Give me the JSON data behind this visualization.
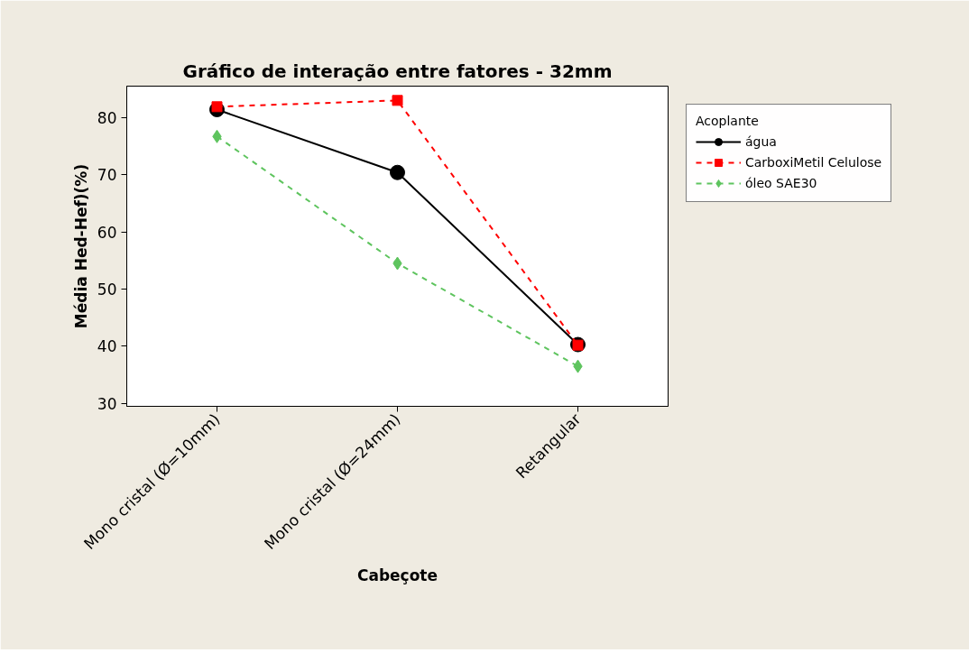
{
  "chart_data": {
    "type": "line",
    "title": "Gráfico de interação entre fatores - 32mm",
    "xlabel": "Cabeçote",
    "ylabel": "Média Hed-Hef)(%)",
    "legend_title": "Acoplante",
    "categories": [
      "Mono cristal (Ø=10mm)",
      "Mono cristal (Ø=24mm)",
      "Retangular"
    ],
    "series": [
      {
        "name": "água",
        "color": "#000000",
        "values": [
          81.4,
          70.4,
          40.3
        ],
        "marker": "circle",
        "line_style": "solid"
      },
      {
        "name": "CarboxiMetil Celulose",
        "color": "#ff0000",
        "values": [
          81.9,
          83.0,
          40.2
        ],
        "marker": "square",
        "line_style": "dashed"
      },
      {
        "name": "óleo SAE30",
        "color": "#5ec45e",
        "values": [
          76.7,
          54.5,
          36.5
        ],
        "marker": "diamond",
        "line_style": "dashed"
      }
    ],
    "ylim": [
      29.5,
      85.5
    ],
    "yticks": [
      30,
      40,
      50,
      60,
      70,
      80
    ],
    "grid": false,
    "legend": "right"
  }
}
